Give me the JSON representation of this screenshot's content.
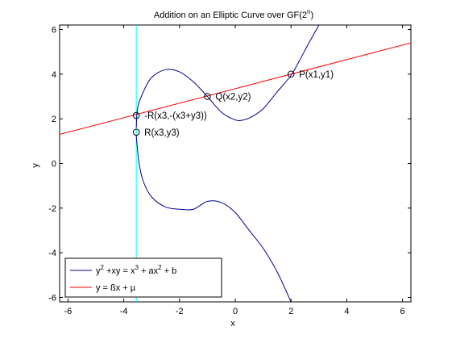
{
  "chart_data": {
    "type": "line",
    "title": "Addition on an Elliptic Curve over GF(2",
    "title_sup": "n",
    "title_close": ")",
    "xlabel": "x",
    "ylabel": "y",
    "xlim": [
      -6.3,
      6.3
    ],
    "ylim": [
      -6.2,
      6.2
    ],
    "xticks": [
      -6,
      -4,
      -2,
      0,
      2,
      4,
      6
    ],
    "xtick_labels": [
      "-6",
      "-4",
      "-2",
      "0",
      "2",
      "4",
      "6"
    ],
    "yticks": [
      -6,
      -4,
      -2,
      0,
      2,
      4,
      6
    ],
    "ytick_labels": [
      "-6",
      "-4",
      "-2",
      "0",
      "2",
      "4",
      "6"
    ],
    "grid": false,
    "legend_position": "bottom-left",
    "series": [
      {
        "name": "y2 +xy = x3 + ax2 + b",
        "color": "#00008b",
        "branch_upper": [
          [
            -3.55,
            1.6
          ],
          [
            -3.5,
            2.5
          ],
          [
            -3.3,
            3.2
          ],
          [
            -3.0,
            3.85
          ],
          [
            -2.5,
            4.2
          ],
          [
            -2.0,
            4.1
          ],
          [
            -1.5,
            3.65
          ],
          [
            -1.0,
            3.0
          ],
          [
            -0.5,
            2.3
          ],
          [
            0.0,
            1.95
          ],
          [
            0.3,
            1.95
          ],
          [
            0.6,
            2.1
          ],
          [
            1.0,
            2.45
          ],
          [
            1.5,
            3.2
          ],
          [
            2.0,
            3.95
          ],
          [
            2.3,
            4.6
          ],
          [
            2.6,
            5.3
          ],
          [
            3.0,
            6.2
          ]
        ],
        "branch_lower": [
          [
            -3.55,
            1.25
          ],
          [
            -3.52,
            0.8
          ],
          [
            -3.45,
            0.0
          ],
          [
            -3.3,
            -0.8
          ],
          [
            -3.0,
            -1.5
          ],
          [
            -2.5,
            -1.95
          ],
          [
            -2.0,
            -2.05
          ],
          [
            -1.5,
            -2.05
          ],
          [
            -1.0,
            -1.7
          ],
          [
            -0.5,
            -1.75
          ],
          [
            0.0,
            -2.2
          ],
          [
            0.5,
            -3.0
          ],
          [
            1.0,
            -3.8
          ],
          [
            1.5,
            -4.85
          ],
          [
            2.0,
            -6.2
          ]
        ]
      },
      {
        "name": "y = ßx + µ",
        "color": "#ff0000",
        "points": [
          [
            -6.3,
            1.3
          ],
          [
            6.3,
            5.4
          ]
        ]
      },
      {
        "name": "vertical line",
        "color": "#00ffff",
        "points": [
          [
            -3.55,
            -6.2
          ],
          [
            -3.55,
            6.2
          ]
        ]
      }
    ],
    "points": [
      {
        "label": "P(x1,y1)",
        "x": 2.0,
        "y": 4.0
      },
      {
        "label": "Q(x2,y2)",
        "x": -1.0,
        "y": 3.0
      },
      {
        "label": "-R(x3,-(x3+y3))",
        "x": -3.55,
        "y": 2.15
      },
      {
        "label": "R(x3,y3)",
        "x": -3.55,
        "y": 1.4
      }
    ],
    "legend": [
      {
        "parts": [
          "y",
          "2",
          " +xy = x",
          "3",
          " + ax",
          "2",
          " + b"
        ],
        "color": "#00008b"
      },
      {
        "parts": [
          "y = ßx + µ"
        ],
        "color": "#ff0000"
      }
    ]
  }
}
